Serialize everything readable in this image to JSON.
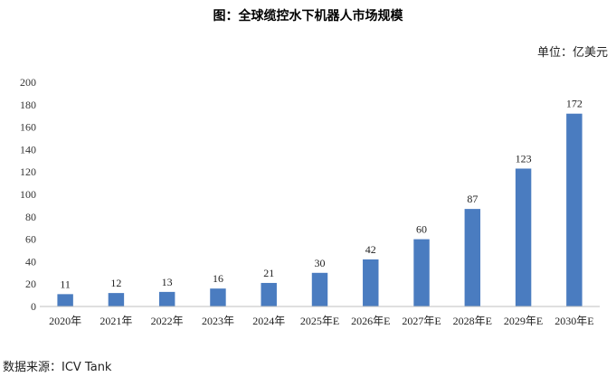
{
  "header": {
    "title": "图：全球缆控水下机器人市场规模",
    "unit": "单位：亿美元"
  },
  "footer": {
    "source": "数据来源：ICV Tank"
  },
  "colors": {
    "bar": "#4a7cc0",
    "axis": "#bfbfbf"
  },
  "chart_data": {
    "type": "bar",
    "title": "图：全球缆控水下机器人市场规模",
    "ylabel": "单位：亿美元",
    "categories": [
      "2020年",
      "2021年",
      "2022年",
      "2023年",
      "2024年",
      "2025年E",
      "2026年E",
      "2027年E",
      "2028年E",
      "2029年E",
      "2030年E"
    ],
    "values": [
      11,
      12,
      13,
      16,
      21,
      30,
      42,
      60,
      87,
      123,
      172
    ],
    "ylim": [
      0,
      200
    ],
    "yticks": [
      0,
      20,
      40,
      60,
      80,
      100,
      120,
      140,
      160,
      180,
      200
    ],
    "grid": false,
    "legend": "none",
    "data_labels": true
  }
}
